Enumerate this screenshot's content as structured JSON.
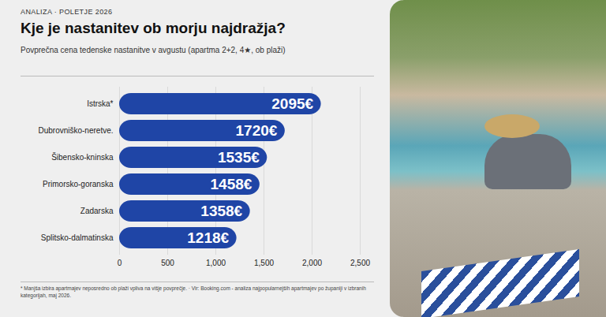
{
  "chart_data": {
    "type": "bar",
    "orientation": "horizontal",
    "title": "Kje je nastanitev ob morju najdražja?",
    "subtitle": "Povprečna cena tedenske nastanitve v avgustu (apartma 2+2, 4★, ob plaži)",
    "annotations": [
      "ANALIZA · POLETJE 2026",
      "* Manjša izbira apartmajev neposredno ob plaži vpliva na višje povprečje. · Vir: Booking.com - analiza najpopularnejših apartmajev po županiji v izbranih kategorijah, maj 2026."
    ],
    "categories": [
      "Istrska*",
      "Dubrovniško-neretve.",
      "Šibensko-kninska",
      "Primorsko-goranska",
      "Zadarska",
      "Splitsko-dalmatinska"
    ],
    "values": [
      2095,
      1720,
      1535,
      1458,
      1358,
      1218
    ],
    "value_labels": [
      "2095€",
      "1720€",
      "1535€",
      "1458€",
      "1358€",
      "1218€"
    ],
    "data_labels": true,
    "color": "#1f45a6",
    "xlim": [
      0,
      2500
    ],
    "xticks": [
      0,
      500,
      {
        "value": 1000,
        "label": "1,000"
      },
      {
        "value": 1500,
        "label": "1,500"
      },
      {
        "value": 2000,
        "label": "2,000"
      },
      {
        "value": 2500,
        "label": "2,500"
      }
    ],
    "grid": true
  }
}
